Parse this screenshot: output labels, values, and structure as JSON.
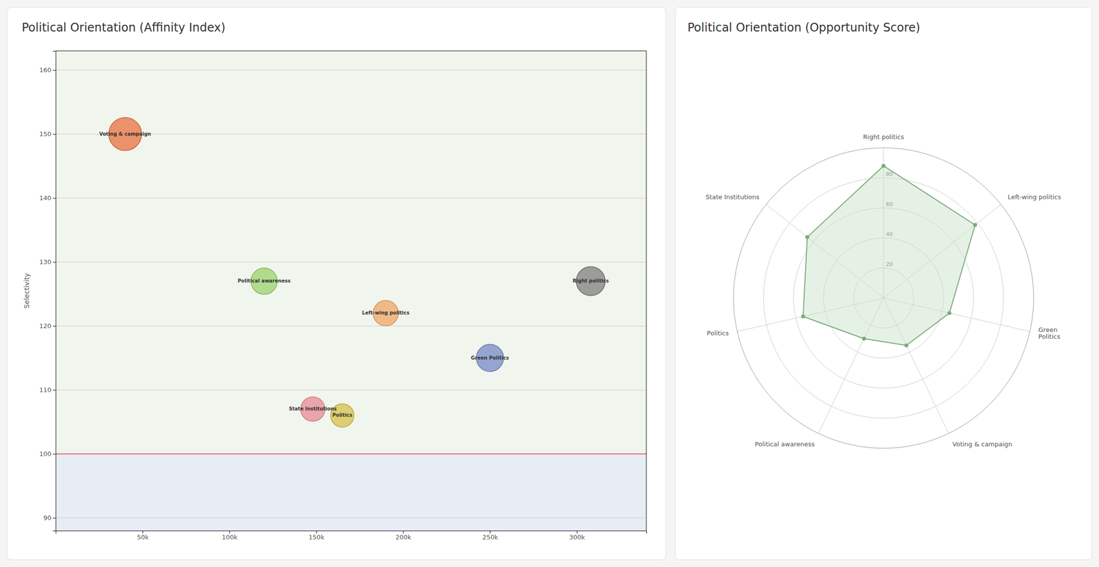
{
  "chart_data": [
    {
      "type": "scatter",
      "title": "Political Orientation (Affinity Index)",
      "y_label": "Selectivity",
      "labels": [
        "Voting & campaign",
        "Political awareness",
        "Left-wing politics",
        "Green Politics",
        "State Institutions",
        "Politics",
        "Right politics"
      ],
      "x": [
        40000,
        120000,
        190000,
        250000,
        148000,
        165000,
        308000
      ],
      "values": [
        150,
        127,
        122,
        115,
        107,
        106,
        127
      ],
      "sizes": [
        2200,
        1400,
        1300,
        1500,
        1200,
        1100,
        1700
      ],
      "colors": [
        "#E8845A",
        "#A8D880",
        "#F0B07A",
        "#8898CC",
        "#E898A0",
        "#D8C860",
        "#909090"
      ],
      "edge_colors": [
        "#C8603A",
        "#80B850",
        "#D09060",
        "#6878AC",
        "#C87880",
        "#B8A840",
        "#686868"
      ],
      "xlim": [
        0,
        340000
      ],
      "xticks": [
        {
          "value": 50000,
          "label": "50k"
        },
        {
          "value": 100000,
          "label": "100k"
        },
        {
          "value": 150000,
          "label": "150k"
        },
        {
          "value": 200000,
          "label": "200k"
        },
        {
          "value": 250000,
          "label": "250k"
        },
        {
          "value": 300000,
          "label": "300k"
        }
      ],
      "ylim": [
        88,
        163
      ],
      "yticks": [
        90,
        100,
        110,
        120,
        130,
        140,
        150,
        160
      ],
      "grid": true,
      "threshold": 100,
      "threshold_color": "#E05555",
      "band_colors": [
        "#F0F5EE",
        "#E8ECF5"
      ]
    },
    {
      "type": "radar",
      "title": "Political Orientation (Opportunity Score)",
      "categories": [
        "Right politics",
        "Left-wing politics",
        "Green\nPolitics",
        "Voting & campaign",
        "Political awareness",
        "Politics",
        "State Institutions"
      ],
      "values": [
        88,
        78,
        45,
        35,
        30,
        55,
        65
      ],
      "ylim": [
        0,
        100
      ],
      "yticks": [
        20,
        40,
        60,
        80
      ],
      "color": "#7AAA77",
      "fill_color": "#C8DFC5",
      "grid": true
    }
  ]
}
